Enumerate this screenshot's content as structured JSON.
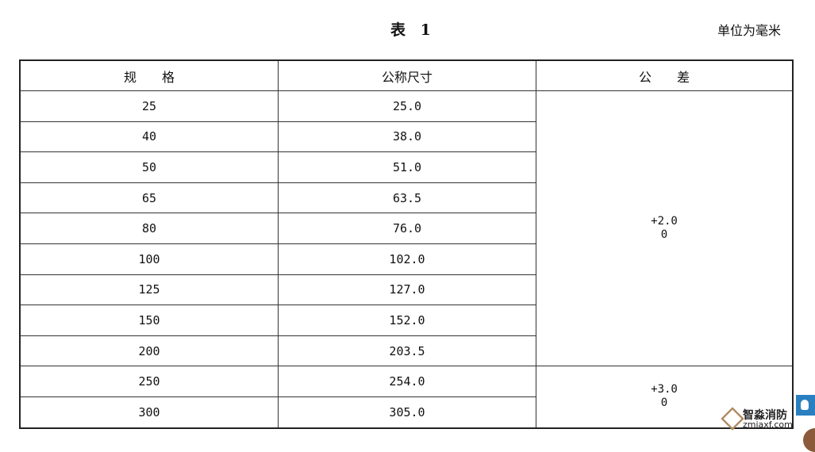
{
  "title": "表 1",
  "unit": "单位为毫米",
  "headers": [
    "规　　格",
    "公称尺寸",
    "公　　差"
  ],
  "rows": [
    [
      "25",
      "25.0"
    ],
    [
      "40",
      "38.0"
    ],
    [
      "50",
      "51.0"
    ],
    [
      "65",
      "63.5"
    ],
    [
      "80",
      "76.0"
    ],
    [
      "100",
      "102.0"
    ],
    [
      "125",
      "127.0"
    ],
    [
      "150",
      "152.0"
    ],
    [
      "200",
      "203.5"
    ],
    [
      "250",
      "254.0"
    ],
    [
      "300",
      "305.0"
    ]
  ],
  "tolerances": [
    {
      "upper": "+2.0",
      "lower": "0"
    },
    {
      "upper": "+3.0",
      "lower": "0"
    }
  ],
  "watermark": {
    "name": "智淼消防",
    "url": "zmjaxf.com"
  }
}
